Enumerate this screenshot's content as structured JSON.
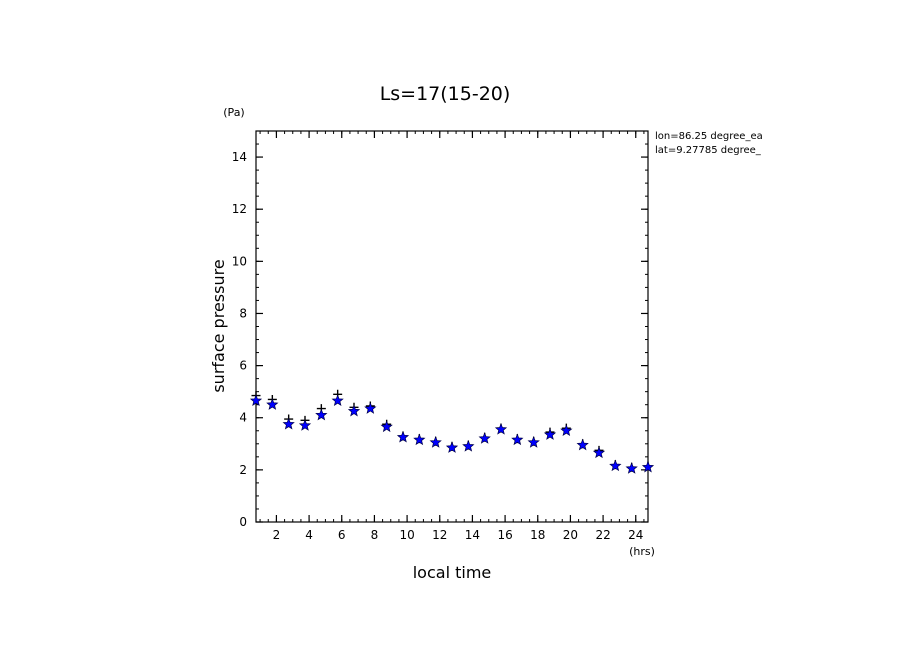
{
  "chart_data": {
    "type": "scatter",
    "title": "Ls=17(15-20)",
    "xlabel": "local time",
    "ylabel": "surface pressure",
    "xunit": "(hrs)",
    "yunit": "(Pa)",
    "annotations": [
      "lon=86.25 degree_ea",
      "lat=9.27785 degree_"
    ],
    "xlim": [
      0.75,
      24.75
    ],
    "ylim": [
      0,
      15
    ],
    "xticks": [
      2,
      4,
      6,
      8,
      10,
      12,
      14,
      16,
      18,
      20,
      22,
      24
    ],
    "yticks": [
      0,
      2,
      4,
      6,
      8,
      10,
      12,
      14
    ],
    "grid": false,
    "series": [
      {
        "marker": "plus",
        "color": "#000000",
        "x": [
          0.75,
          1.75,
          2.75,
          3.75,
          4.75,
          5.75,
          6.75,
          7.75,
          8.75,
          9.75,
          10.75,
          11.75,
          12.75,
          13.75,
          14.75,
          15.75,
          16.75,
          17.75,
          18.75,
          19.75,
          20.75,
          21.75,
          22.75,
          23.75,
          24.75
        ],
        "values": [
          4.85,
          4.7,
          3.95,
          3.9,
          4.35,
          4.9,
          4.4,
          4.45,
          3.75,
          3.3,
          3.2,
          3.1,
          2.9,
          2.95,
          3.25,
          3.6,
          3.2,
          3.1,
          3.45,
          3.6,
          3.0,
          2.75,
          2.2,
          2.1,
          2.15
        ]
      },
      {
        "marker": "star",
        "color": "#0000ff",
        "x": [
          0.75,
          1.75,
          2.75,
          3.75,
          4.75,
          5.75,
          6.75,
          7.75,
          8.75,
          9.75,
          10.75,
          11.75,
          12.75,
          13.75,
          14.75,
          15.75,
          16.75,
          17.75,
          18.75,
          19.75,
          20.75,
          21.75,
          22.75,
          23.75,
          24.75
        ],
        "values": [
          4.65,
          4.5,
          3.75,
          3.7,
          4.1,
          4.65,
          4.25,
          4.35,
          3.65,
          3.25,
          3.15,
          3.05,
          2.85,
          2.9,
          3.2,
          3.55,
          3.15,
          3.05,
          3.35,
          3.5,
          2.95,
          2.65,
          2.15,
          2.05,
          2.1
        ]
      }
    ]
  }
}
